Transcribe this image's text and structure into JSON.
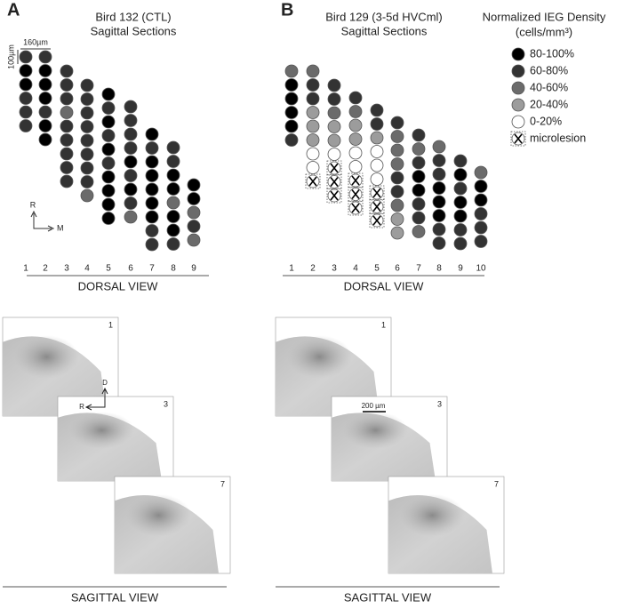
{
  "legend": {
    "title": "Normalized IEG Density",
    "unit": "(cells/mm³)",
    "items": [
      "80-100%",
      "60-80%",
      "40-60%",
      "20-40%",
      "0-20%",
      "microlesion"
    ]
  },
  "panels": [
    {
      "letter": "A",
      "title": "Bird 132 (CTL)",
      "subtitle": "Sagittal Sections",
      "scale_h": "160µm",
      "scale_v": "100µm",
      "axis_r": "R",
      "axis_m": "M",
      "columns": [
        1,
        2,
        3,
        4,
        5,
        6,
        7,
        8,
        9
      ],
      "levels": [
        [
          1,
          0,
          0,
          1,
          1,
          1
        ],
        [
          1,
          0,
          0,
          0,
          1,
          0,
          0
        ],
        [
          1,
          1,
          1,
          2,
          1,
          1,
          1,
          1,
          1
        ],
        [
          1,
          1,
          1,
          1,
          1,
          1,
          1,
          1,
          2
        ],
        [
          0,
          1,
          0,
          1,
          0,
          1,
          0,
          0,
          0,
          0
        ],
        [
          1,
          1,
          1,
          1,
          0,
          1,
          0,
          1,
          2
        ],
        [
          0,
          1,
          0,
          0,
          0,
          0,
          0,
          1,
          1
        ],
        [
          1,
          1,
          0,
          0,
          2,
          0,
          0,
          1
        ],
        [
          0,
          0,
          2,
          1,
          2
        ]
      ],
      "dorsal_label": "DORSAL VIEW",
      "sagittal_label": "SAGITTAL VIEW",
      "images": [
        {
          "label": "1"
        },
        {
          "label": "3"
        },
        {
          "label": "7"
        }
      ],
      "orient_d": "D",
      "orient_r": "R",
      "image_scale": null
    },
    {
      "letter": "B",
      "title": "Bird 129 (3-5d HVCml)",
      "subtitle": "Sagittal Sections",
      "scale_h": null,
      "scale_v": null,
      "axis_r": null,
      "axis_m": null,
      "columns": [
        1,
        2,
        3,
        4,
        5,
        6,
        7,
        8,
        9,
        10
      ],
      "levels": [
        [
          2,
          0,
          0,
          0,
          0,
          1
        ],
        [
          2,
          1,
          1,
          3,
          3,
          3,
          4,
          4,
          5
        ],
        [
          1,
          1,
          2,
          3,
          3,
          4,
          5,
          5,
          5
        ],
        [
          1,
          2,
          3,
          3,
          4,
          4,
          5,
          5,
          5
        ],
        [
          1,
          1,
          3,
          4,
          4,
          4,
          5,
          5,
          5
        ],
        [
          1,
          2,
          2,
          2,
          1,
          1,
          2,
          3,
          3
        ],
        [
          1,
          2,
          1,
          0,
          0,
          1,
          1,
          2
        ],
        [
          2,
          1,
          1,
          0,
          0,
          0,
          1,
          1
        ],
        [
          1,
          0,
          1,
          0,
          0,
          1,
          1
        ],
        [
          2,
          0,
          0,
          1,
          1,
          1
        ]
      ],
      "dorsal_label": "DORSAL VIEW",
      "sagittal_label": "SAGITTAL VIEW",
      "images": [
        {
          "label": "1"
        },
        {
          "label": "3"
        },
        {
          "label": "7"
        }
      ],
      "orient_d": null,
      "orient_r": null,
      "image_scale": "200 µm"
    }
  ]
}
